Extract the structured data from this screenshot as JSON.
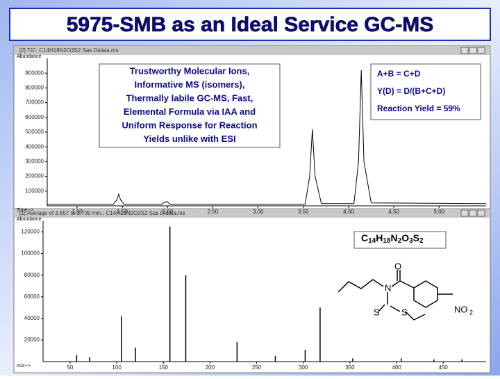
{
  "header": {
    "title": "5975-SMB as an Ideal Service GC-MS"
  },
  "notes": {
    "claims": [
      "Trustworthy Molecular Ions,",
      "Informative MS (isomers),",
      "Thermally labile GC-MS, Fast,",
      "Elemental Formula via IAA and",
      "Uniform Response for Reaction",
      "Yields unlike with ESI"
    ],
    "reaction": [
      "A+B = C+D",
      "Y(D) = D/(B+C+D)",
      "Reaction Yield = 59%"
    ],
    "formula": [
      "C",
      "14",
      "H",
      "18",
      "N",
      "2",
      "O",
      "3",
      "S",
      "2"
    ],
    "molecule_labels": [
      "O",
      "N",
      "S",
      "S",
      "NO",
      "2"
    ]
  },
  "chart_data": [
    {
      "type": "line",
      "window_title": "[2] TIC: C14H18N2O3S2 Sas Didata.ms",
      "ylabel": "Abundance",
      "xlabel": "Time-->",
      "color": "#000000",
      "x": [
        0.67,
        1.4,
        1.44,
        1.46,
        1.48,
        1.52,
        1.93,
        1.97,
        1.99,
        2.03,
        3.52,
        3.57,
        3.6,
        3.63,
        3.7,
        4.06,
        4.11,
        4.14,
        4.17,
        4.25,
        5.52
      ],
      "values": [
        10000,
        10000,
        40000,
        80000,
        40000,
        10000,
        10000,
        25000,
        30000,
        10000,
        10000,
        200000,
        520000,
        200000,
        15000,
        15000,
        300000,
        920000,
        300000,
        20000,
        15000
      ],
      "xlim": [
        0.67,
        5.52
      ],
      "ylim": [
        0,
        1000000
      ],
      "xticks": [
        {
          "value": 1,
          "label": "1.00"
        },
        {
          "value": 1.5,
          "label": "1.50"
        },
        {
          "value": 2,
          "label": "2.00"
        },
        {
          "value": 2.5,
          "label": "2.50"
        },
        {
          "value": 3,
          "label": "3.00"
        },
        {
          "value": 3.5,
          "label": "3.50"
        },
        {
          "value": 4,
          "label": "4.00"
        },
        {
          "value": 4.5,
          "label": "4.50"
        },
        {
          "value": 5,
          "label": "5.00"
        }
      ],
      "yticks": [
        100000,
        200000,
        300000,
        400000,
        500000,
        600000,
        700000,
        800000,
        900000
      ]
    },
    {
      "type": "bar",
      "window_title": "[1] Average of 3.657 to 3.730 min.: C14H18N2O3S2 Sas Didata.ms",
      "ylabel": "Abundance",
      "xlabel": "m/z-->",
      "color": "#000000",
      "x": [
        57,
        71,
        105,
        120,
        157,
        174,
        229,
        270,
        302,
        318,
        353,
        405,
        440,
        470
      ],
      "values": [
        6000,
        4000,
        42000,
        13000,
        125000,
        80000,
        18000,
        5000,
        11000,
        50000,
        3000,
        3000,
        2000,
        2000
      ],
      "xlim": [
        21,
        496
      ],
      "ylim": [
        0,
        130000
      ],
      "xticks": [
        50,
        100,
        150,
        200,
        250,
        300,
        350,
        400,
        450
      ],
      "yticks": [
        20000,
        40000,
        60000,
        80000,
        100000,
        120000
      ]
    }
  ]
}
